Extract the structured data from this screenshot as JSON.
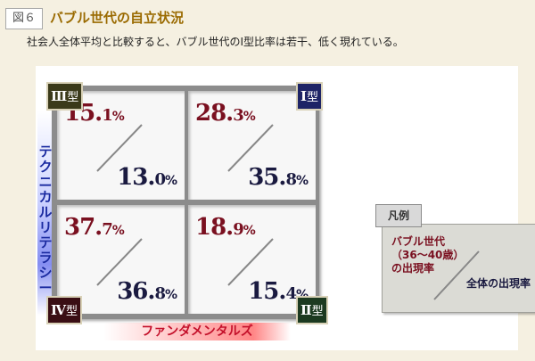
{
  "header": {
    "figure_label": "図６",
    "title": "バブル世代の自立状況",
    "subtitle": "社会人全体平均と比較すると、バブル世代のⅠ型比率は若干、低く現れている。"
  },
  "axes": {
    "vertical_label": "テクニカルリテラシー",
    "horizontal_label": "ファンダメンタルズ"
  },
  "quadrants": {
    "q3": {
      "badge_numeral": "Ⅲ",
      "badge_suffix": "型",
      "bubble_int": "15.",
      "bubble_dec": "1",
      "bubble_pct": "%",
      "overall_int": "13.",
      "overall_dec": "0",
      "overall_pct": "%"
    },
    "q1": {
      "badge_numeral": "Ⅰ",
      "badge_suffix": "型",
      "bubble_int": "28.",
      "bubble_dec": "3",
      "bubble_pct": "%",
      "overall_int": "35.",
      "overall_dec": "8",
      "overall_pct": "%"
    },
    "q4": {
      "badge_numeral": "Ⅳ",
      "badge_suffix": "型",
      "bubble_int": "37.",
      "bubble_dec": "7",
      "bubble_pct": "%",
      "overall_int": "36.",
      "overall_dec": "8",
      "overall_pct": "%"
    },
    "q2": {
      "badge_numeral": "Ⅱ",
      "badge_suffix": "型",
      "bubble_int": "18.",
      "bubble_dec": "9",
      "bubble_pct": "%",
      "overall_int": "15.",
      "overall_dec": "4",
      "overall_pct": "%"
    }
  },
  "legend": {
    "tab_label": "凡例",
    "series_a_line1": "バブル世代",
    "series_a_line2": "（36〜40歳）",
    "series_a_line3": "の出現率",
    "series_b": "全体の出現率"
  },
  "colors": {
    "background": "#f5f0e1",
    "title": "#9a6a00",
    "bubble_value": "#7a1020",
    "overall_value": "#1a1a40",
    "vertical_axis": "#1a2aa0",
    "horizontal_axis": "#c4102a"
  }
}
